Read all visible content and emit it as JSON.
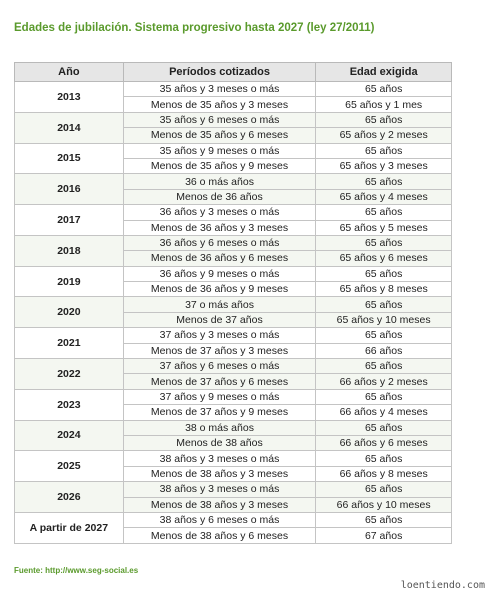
{
  "title": "Edades de jubilación.  Sistema progresivo hasta 2027 (ley 27/2011)",
  "table": {
    "headers": [
      "Año",
      "Períodos cotizados",
      "Edad exigida"
    ],
    "rows": [
      {
        "year": "2013",
        "entries": [
          [
            "35 años y 3 meses o más",
            "65 años"
          ],
          [
            "Menos de 35 años y 3 meses",
            "65 años y 1 mes"
          ]
        ]
      },
      {
        "year": "2014",
        "entries": [
          [
            "35 años y 6 meses o más",
            "65 años"
          ],
          [
            "Menos de 35 años y 6 meses",
            "65 años y 2 meses"
          ]
        ]
      },
      {
        "year": "2015",
        "entries": [
          [
            "35 años y 9 meses o más",
            "65 años"
          ],
          [
            "Menos de 35 años y 9 meses",
            "65 años y 3 meses"
          ]
        ]
      },
      {
        "year": "2016",
        "entries": [
          [
            "36 o más años",
            "65 años"
          ],
          [
            "Menos de 36 años",
            "65 años y 4 meses"
          ]
        ]
      },
      {
        "year": "2017",
        "entries": [
          [
            "36 años y 3 meses o más",
            "65 años"
          ],
          [
            "Menos de 36 años y 3 meses",
            "65 años y 5 meses"
          ]
        ]
      },
      {
        "year": "2018",
        "entries": [
          [
            "36 años y 6 meses o más",
            "65 años"
          ],
          [
            "Menos de 36 años y 6 meses",
            "65 años y 6 meses"
          ]
        ]
      },
      {
        "year": "2019",
        "entries": [
          [
            "36 años y 9 meses o más",
            "65 años"
          ],
          [
            "Menos de 36 años y 9 meses",
            "65 años y 8 meses"
          ]
        ]
      },
      {
        "year": "2020",
        "entries": [
          [
            "37 o más años",
            "65 años"
          ],
          [
            "Menos de 37 años",
            "65 años y 10 meses"
          ]
        ]
      },
      {
        "year": "2021",
        "entries": [
          [
            "37 años y 3 meses o más",
            "65 años"
          ],
          [
            "Menos de 37 años y 3 meses",
            "66 años"
          ]
        ]
      },
      {
        "year": "2022",
        "entries": [
          [
            "37 años y 6 meses o más",
            "65 años"
          ],
          [
            "Menos de 37 años y 6 meses",
            "66 años y 2 meses"
          ]
        ]
      },
      {
        "year": "2023",
        "entries": [
          [
            "37 años y 9 meses o más",
            "65 años"
          ],
          [
            "Menos de 37 años y 9 meses",
            "66 años y 4 meses"
          ]
        ]
      },
      {
        "year": "2024",
        "entries": [
          [
            "38 o más años",
            "65 años"
          ],
          [
            "Menos de 38 años",
            "66 años y 6 meses"
          ]
        ]
      },
      {
        "year": "2025",
        "entries": [
          [
            "38 años y 3 meses o más",
            "65 años"
          ],
          [
            "Menos de 38 años y 3 meses",
            "66 años y 8 meses"
          ]
        ]
      },
      {
        "year": "2026",
        "entries": [
          [
            "38 años y 3 meses o más",
            "65 años"
          ],
          [
            "Menos de 38 años y 3 meses",
            "66 años y 10 meses"
          ]
        ]
      },
      {
        "year": "A partir de 2027",
        "entries": [
          [
            "38 años y 6 meses o más",
            "65 años"
          ],
          [
            "Menos de 38 años y 6 meses",
            "67 años"
          ]
        ]
      }
    ]
  },
  "source": "Fuente: http://www.seg-social.es",
  "watermark": "loentiendo.com"
}
